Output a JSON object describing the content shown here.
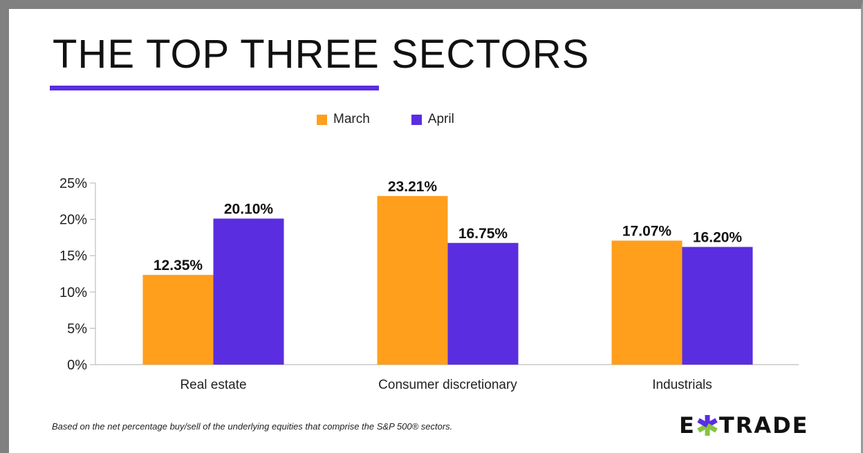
{
  "title": "THE TOP THREE SECTORS",
  "legend": {
    "march": "March",
    "april": "April"
  },
  "footnote": "Based on the net percentage buy/sell of the underlying equities that comprise the S&P 500® sectors.",
  "logo": {
    "left": "E",
    "right": "TRADE",
    "full": "E*TRADE"
  },
  "colors": {
    "march": "#ff9f1c",
    "april": "#5a2ee0",
    "axis": "#bdbdbd",
    "logo_asterisk_left": "#5a2ee0",
    "logo_asterisk_right": "#86c440"
  },
  "chart_data": {
    "type": "bar",
    "categories": [
      "Real estate",
      "Consumer discretionary",
      "Industrials"
    ],
    "series": [
      {
        "name": "March",
        "values": [
          12.35,
          23.21,
          17.07
        ],
        "labels": [
          "12.35%",
          "23.21%",
          "17.07%"
        ]
      },
      {
        "name": "April",
        "values": [
          20.1,
          16.75,
          16.2
        ],
        "labels": [
          "20.10%",
          "16.75%",
          "16.20%"
        ]
      }
    ],
    "yticks": [
      "0%",
      "5%",
      "10%",
      "15%",
      "20%",
      "25%"
    ],
    "ylim": [
      0,
      25
    ],
    "xlabel": "",
    "ylabel": "",
    "grid": false,
    "legend_position": "top-center"
  }
}
